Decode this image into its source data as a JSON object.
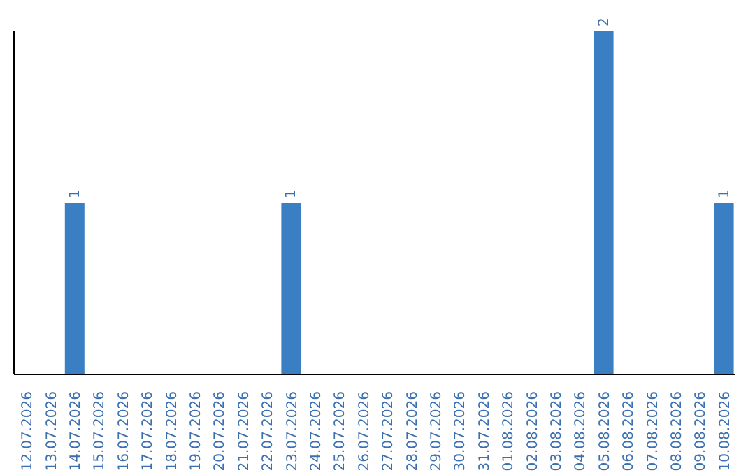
{
  "chart_data": {
    "type": "bar",
    "categories": [
      "12.07.2026",
      "13.07.2026",
      "14.07.2026",
      "15.07.2026",
      "16.07.2026",
      "17.07.2026",
      "18.07.2026",
      "19.07.2026",
      "20.07.2026",
      "21.07.2026",
      "22.07.2026",
      "23.07.2026",
      "24.07.2026",
      "25.07.2026",
      "26.07.2026",
      "27.07.2026",
      "28.07.2026",
      "29.07.2026",
      "30.07.2026",
      "31.07.2026",
      "01.08.2026",
      "02.08.2026",
      "03.08.2026",
      "04.08.2026",
      "05.08.2026",
      "06.08.2026",
      "07.08.2026",
      "08.08.2026",
      "09.08.2026",
      "10.08.2026"
    ],
    "values": [
      0,
      0,
      1,
      0,
      0,
      0,
      0,
      0,
      0,
      0,
      0,
      1,
      0,
      0,
      0,
      0,
      0,
      0,
      0,
      0,
      0,
      0,
      0,
      0,
      2,
      0,
      0,
      0,
      0,
      1
    ],
    "value_labels": [
      null,
      null,
      "1",
      null,
      null,
      null,
      null,
      null,
      null,
      null,
      null,
      "1",
      null,
      null,
      null,
      null,
      null,
      null,
      null,
      null,
      null,
      null,
      null,
      null,
      "2",
      null,
      null,
      null,
      null,
      "1"
    ],
    "color": "#3a7ec4",
    "tick_labels": "x"
  }
}
